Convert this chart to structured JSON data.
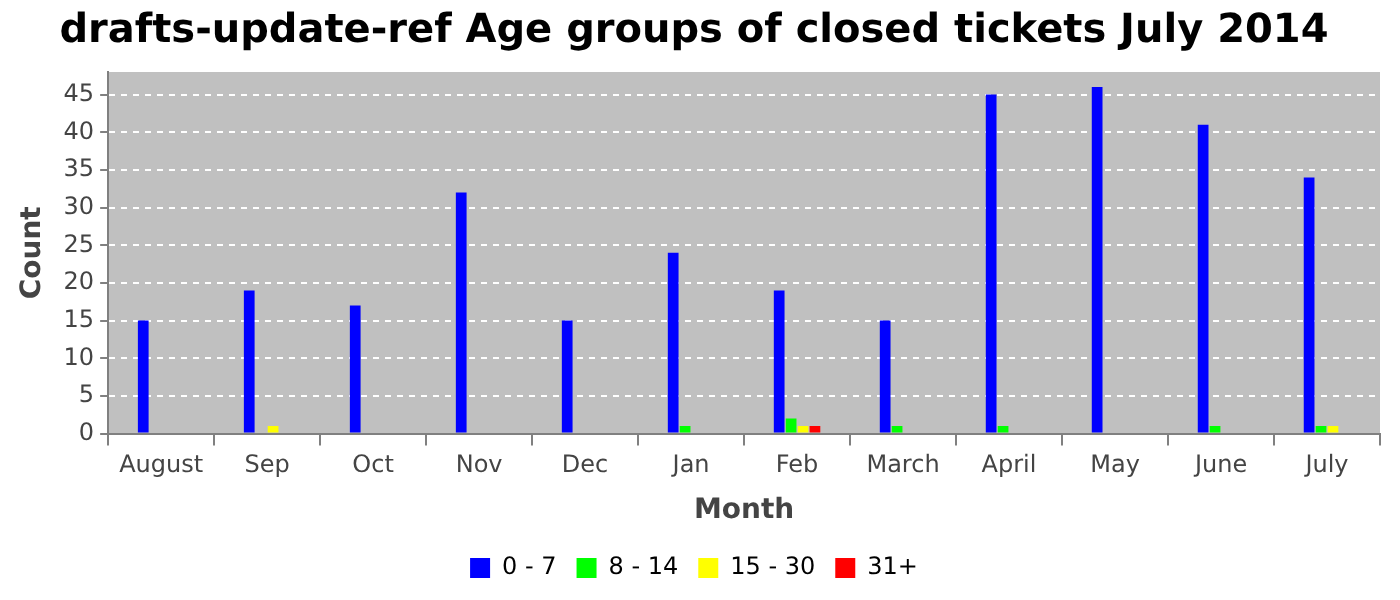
{
  "chart_data": {
    "type": "bar",
    "title": "drafts-update-ref Age groups of closed tickets July 2014",
    "xlabel": "Month",
    "ylabel": "Count",
    "categories": [
      "August",
      "Sep",
      "Oct",
      "Nov",
      "Dec",
      "Jan",
      "Feb",
      "March",
      "April",
      "May",
      "June",
      "July"
    ],
    "series": [
      {
        "name": "0 - 7",
        "color": "#0000ff",
        "values": [
          15,
          19,
          17,
          32,
          15,
          24,
          19,
          15,
          45,
          46,
          41,
          34
        ]
      },
      {
        "name": "8 - 14",
        "color": "#00ff00",
        "values": [
          0,
          0,
          0,
          0,
          0,
          1,
          2,
          1,
          1,
          0,
          1,
          1
        ]
      },
      {
        "name": "15 - 30",
        "color": "#ffff00",
        "values": [
          0,
          1,
          0,
          0,
          0,
          0,
          1,
          0,
          0,
          0,
          0,
          1
        ]
      },
      {
        "name": "31+",
        "color": "#ff0000",
        "values": [
          0,
          0,
          0,
          0,
          0,
          0,
          1,
          0,
          0,
          0,
          0,
          0
        ]
      }
    ],
    "ylim": [
      0,
      48
    ],
    "yticks": [
      0,
      5,
      10,
      15,
      20,
      25,
      30,
      35,
      40,
      45
    ],
    "grid": "y",
    "legend": "bottom"
  }
}
